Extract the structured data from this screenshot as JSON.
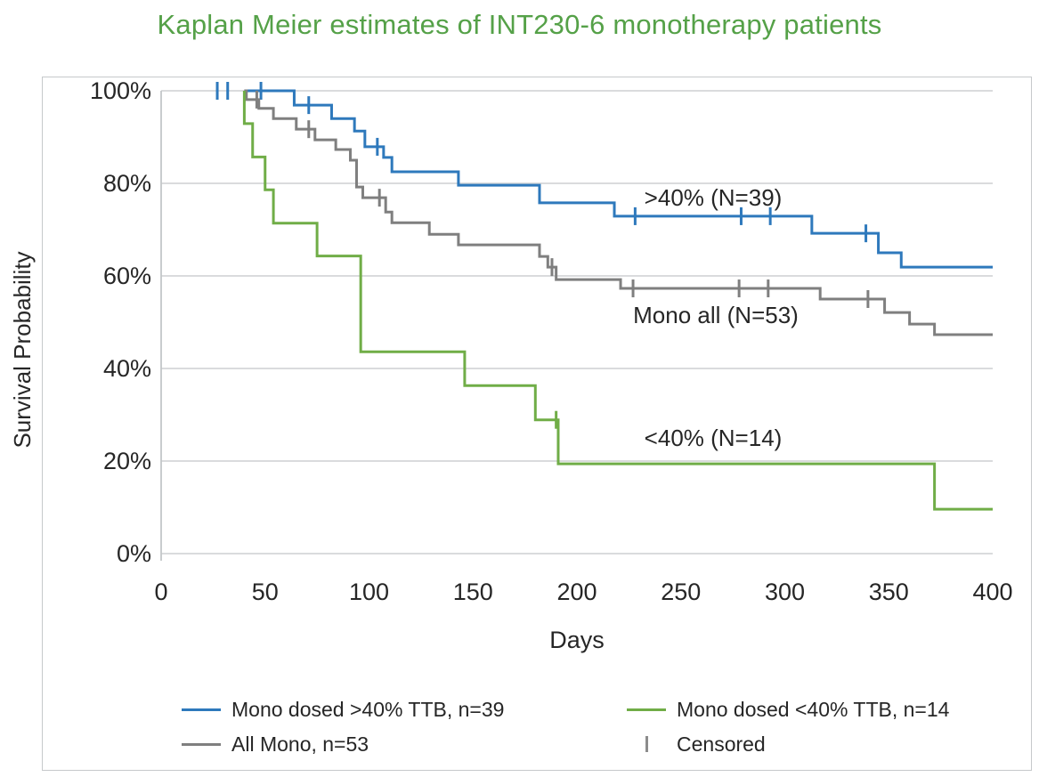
{
  "title": {
    "text": "Kaplan Meier estimates of INT230-6 monotherapy patients",
    "color": "#55a148"
  },
  "axes": {
    "y_label": "Survival Probability",
    "x_label": "Days",
    "y_ticks": [
      "100%",
      "80%",
      "60%",
      "40%",
      "20%",
      "0%"
    ],
    "x_ticks": [
      "0",
      "50",
      "100",
      "150",
      "200",
      "250",
      "300",
      "350",
      "400"
    ]
  },
  "annotations": [
    {
      "text": ">40% (N=39)"
    },
    {
      "text": "Mono all (N=53)"
    },
    {
      "text": "<40% (N=14)"
    }
  ],
  "legend": {
    "items": [
      {
        "label": "Mono dosed >40% TTB, n=39",
        "type": "line",
        "color": "#2e79bc"
      },
      {
        "label": "Mono dosed <40% TTB, n=14",
        "type": "line",
        "color": "#70ad47"
      },
      {
        "label": "All Mono, n=53",
        "type": "line",
        "color": "#7f7f7f"
      },
      {
        "label": "Censored",
        "type": "tick",
        "color": "#8c8c8c"
      }
    ]
  },
  "chart_data": {
    "type": "line",
    "step": true,
    "title": "Kaplan Meier estimates of INT230-6 monotherapy patients",
    "xlabel": "Days",
    "ylabel": "Survival Probability",
    "xlim": [
      0,
      400
    ],
    "ylim_pct": [
      0,
      100
    ],
    "grid": "horizontal",
    "legend_position": "bottom",
    "series": [
      {
        "name": "Mono dosed >40% TTB, n=39",
        "annotation": ">40% (N=39)",
        "color": "#2e79bc",
        "points_day_pct": [
          [
            40,
            100
          ],
          [
            64,
            96.9
          ],
          [
            82,
            94.0
          ],
          [
            93,
            91.3
          ],
          [
            98,
            87.9
          ],
          [
            107,
            85.6
          ],
          [
            111,
            82.5
          ],
          [
            143,
            79.6
          ],
          [
            182,
            75.8
          ],
          [
            218,
            72.9
          ],
          [
            313,
            69.2
          ],
          [
            345,
            65.0
          ],
          [
            356,
            61.9
          ],
          [
            400,
            61.9
          ]
        ],
        "censored_days": [
          27,
          32,
          48,
          71,
          104,
          228,
          279,
          293,
          339
        ]
      },
      {
        "name": "All Mono, n=53",
        "annotation": "Mono all (N=53)",
        "color": "#7f7f7f",
        "points_day_pct": [
          [
            40,
            100
          ],
          [
            41,
            98.1
          ],
          [
            47,
            96.2
          ],
          [
            54,
            94.0
          ],
          [
            65,
            91.7
          ],
          [
            74,
            89.4
          ],
          [
            84,
            87.3
          ],
          [
            91,
            85.0
          ],
          [
            94,
            79.2
          ],
          [
            97,
            76.9
          ],
          [
            108,
            73.8
          ],
          [
            111,
            71.5
          ],
          [
            129,
            69.0
          ],
          [
            143,
            66.7
          ],
          [
            182,
            64.2
          ],
          [
            186,
            61.9
          ],
          [
            190,
            59.2
          ],
          [
            221,
            57.3
          ],
          [
            317,
            55.0
          ],
          [
            348,
            52.1
          ],
          [
            360,
            49.6
          ],
          [
            372,
            47.3
          ],
          [
            400,
            47.3
          ]
        ],
        "censored_days": [
          46,
          71,
          105,
          188,
          227,
          278,
          292,
          340
        ]
      },
      {
        "name": "Mono dosed <40% TTB, n=14",
        "annotation": "<40% (N=14)",
        "color": "#70ad47",
        "points_day_pct": [
          [
            40,
            100
          ],
          [
            40,
            92.9
          ],
          [
            44,
            85.7
          ],
          [
            50,
            78.6
          ],
          [
            54,
            71.4
          ],
          [
            75,
            64.3
          ],
          [
            96,
            43.6
          ],
          [
            146,
            36.3
          ],
          [
            180,
            28.9
          ],
          [
            191,
            19.4
          ],
          [
            372,
            9.6
          ],
          [
            400,
            9.6
          ]
        ],
        "censored_days": [
          190
        ]
      }
    ]
  }
}
